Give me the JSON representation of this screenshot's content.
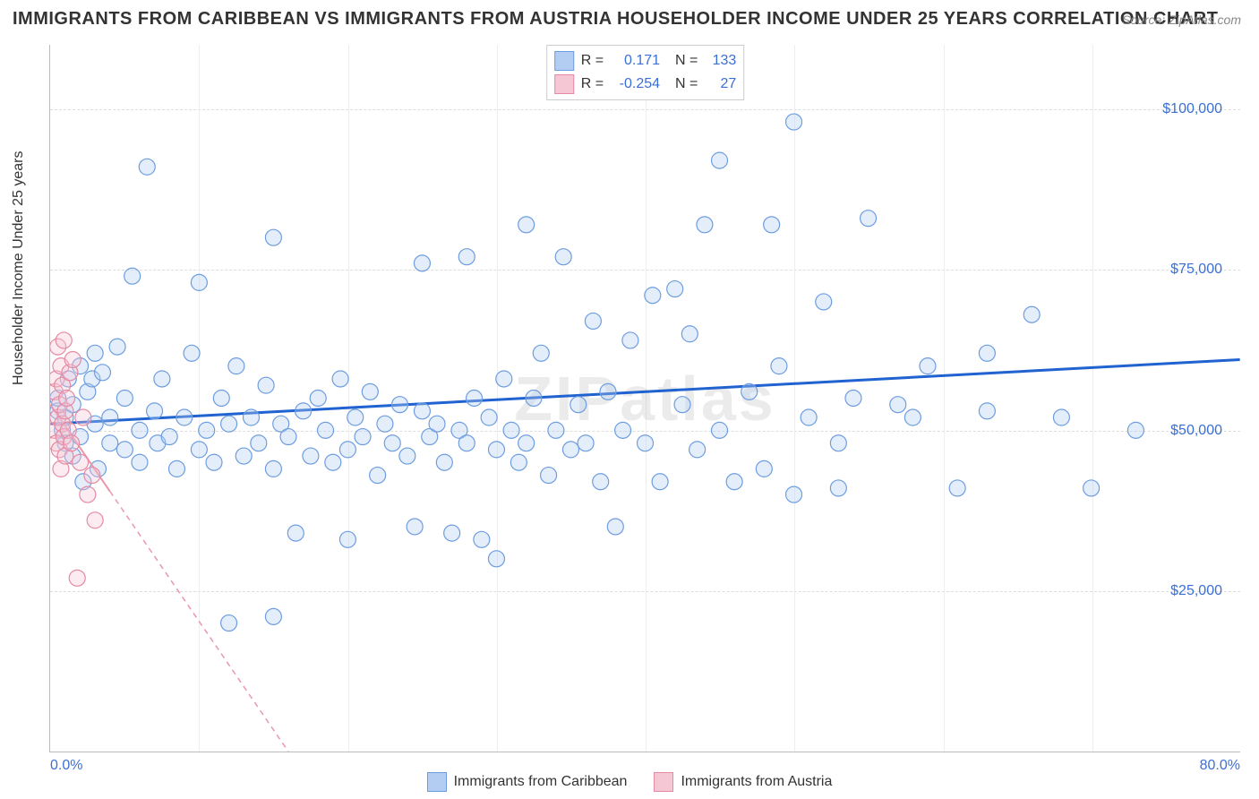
{
  "title": "IMMIGRANTS FROM CARIBBEAN VS IMMIGRANTS FROM AUSTRIA HOUSEHOLDER INCOME UNDER 25 YEARS CORRELATION CHART",
  "source": "Source: ZipAtlas.com",
  "watermark": "ZIPatlas",
  "ylabel": "Householder Income Under 25 years",
  "chart": {
    "type": "scatter",
    "xlim": [
      0,
      80
    ],
    "ylim": [
      0,
      110000
    ],
    "xticks_start": "0.0%",
    "xticks_end": "80.0%",
    "yticks": [
      {
        "v": 25000,
        "label": "$25,000"
      },
      {
        "v": 50000,
        "label": "$50,000"
      },
      {
        "v": 75000,
        "label": "$75,000"
      },
      {
        "v": 100000,
        "label": "$100,000"
      }
    ],
    "xgrid_step": 10,
    "background_color": "#ffffff",
    "grid_color_h": "#dddddd",
    "grid_color_v": "#eeeeee",
    "marker_radius": 9,
    "marker_fill_opacity": 0.35,
    "marker_stroke_width": 1.2,
    "series": [
      {
        "name": "Immigrants from Caribbean",
        "color_fill": "#b3cdf2",
        "color_stroke": "#6d9de0",
        "line_color": "#1f62d0",
        "line_width": 3,
        "line_dash": "none",
        "R": "0.171",
        "N": "133",
        "trend": {
          "x1": 0,
          "y1": 51000,
          "x2": 80,
          "y2": 61000
        },
        "points": [
          [
            0.5,
            53000
          ],
          [
            0.5,
            55000
          ],
          [
            0.8,
            50000
          ],
          [
            1,
            52000
          ],
          [
            1,
            48000
          ],
          [
            1.2,
            58000
          ],
          [
            1.5,
            46000
          ],
          [
            1.5,
            54000
          ],
          [
            2,
            60000
          ],
          [
            2,
            49000
          ],
          [
            2.2,
            42000
          ],
          [
            2.5,
            56000
          ],
          [
            2.8,
            58000
          ],
          [
            3,
            51000
          ],
          [
            3,
            62000
          ],
          [
            3.2,
            44000
          ],
          [
            3.5,
            59000
          ],
          [
            4,
            52000
          ],
          [
            4,
            48000
          ],
          [
            4.5,
            63000
          ],
          [
            5,
            47000
          ],
          [
            5,
            55000
          ],
          [
            5.5,
            74000
          ],
          [
            6,
            50000
          ],
          [
            6,
            45000
          ],
          [
            6.5,
            91000
          ],
          [
            7,
            53000
          ],
          [
            7.2,
            48000
          ],
          [
            7.5,
            58000
          ],
          [
            8,
            49000
          ],
          [
            8.5,
            44000
          ],
          [
            9,
            52000
          ],
          [
            9.5,
            62000
          ],
          [
            10,
            47000
          ],
          [
            10,
            73000
          ],
          [
            10.5,
            50000
          ],
          [
            11,
            45000
          ],
          [
            11.5,
            55000
          ],
          [
            12,
            51000
          ],
          [
            12,
            20000
          ],
          [
            12.5,
            60000
          ],
          [
            13,
            46000
          ],
          [
            13.5,
            52000
          ],
          [
            14,
            48000
          ],
          [
            14.5,
            57000
          ],
          [
            15,
            80000
          ],
          [
            15,
            44000
          ],
          [
            15,
            21000
          ],
          [
            15.5,
            51000
          ],
          [
            16,
            49000
          ],
          [
            16.5,
            34000
          ],
          [
            17,
            53000
          ],
          [
            17.5,
            46000
          ],
          [
            18,
            55000
          ],
          [
            18.5,
            50000
          ],
          [
            19,
            45000
          ],
          [
            19.5,
            58000
          ],
          [
            20,
            33000
          ],
          [
            20,
            47000
          ],
          [
            20.5,
            52000
          ],
          [
            21,
            49000
          ],
          [
            21.5,
            56000
          ],
          [
            22,
            43000
          ],
          [
            22.5,
            51000
          ],
          [
            23,
            48000
          ],
          [
            23.5,
            54000
          ],
          [
            24,
            46000
          ],
          [
            24.5,
            35000
          ],
          [
            25,
            53000
          ],
          [
            25,
            76000
          ],
          [
            25.5,
            49000
          ],
          [
            26,
            51000
          ],
          [
            26.5,
            45000
          ],
          [
            27,
            34000
          ],
          [
            27.5,
            50000
          ],
          [
            28,
            48000
          ],
          [
            28,
            77000
          ],
          [
            28.5,
            55000
          ],
          [
            29,
            33000
          ],
          [
            29.5,
            52000
          ],
          [
            30,
            47000
          ],
          [
            30,
            30000
          ],
          [
            30.5,
            58000
          ],
          [
            31,
            50000
          ],
          [
            31.5,
            45000
          ],
          [
            32,
            82000
          ],
          [
            32,
            48000
          ],
          [
            32.5,
            55000
          ],
          [
            33,
            62000
          ],
          [
            33.5,
            43000
          ],
          [
            34,
            50000
          ],
          [
            34.5,
            77000
          ],
          [
            35,
            47000
          ],
          [
            35.5,
            54000
          ],
          [
            36,
            48000
          ],
          [
            36.5,
            67000
          ],
          [
            37,
            42000
          ],
          [
            37.5,
            56000
          ],
          [
            38,
            35000
          ],
          [
            38.5,
            50000
          ],
          [
            39,
            64000
          ],
          [
            40,
            48000
          ],
          [
            40.5,
            71000
          ],
          [
            41,
            42000
          ],
          [
            42,
            72000
          ],
          [
            42.5,
            54000
          ],
          [
            43,
            65000
          ],
          [
            43.5,
            47000
          ],
          [
            44,
            82000
          ],
          [
            45,
            50000
          ],
          [
            45,
            92000
          ],
          [
            46,
            42000
          ],
          [
            47,
            56000
          ],
          [
            48,
            44000
          ],
          [
            48.5,
            82000
          ],
          [
            49,
            60000
          ],
          [
            50,
            40000
          ],
          [
            50,
            98000
          ],
          [
            51,
            52000
          ],
          [
            52,
            70000
          ],
          [
            53,
            48000
          ],
          [
            53,
            41000
          ],
          [
            54,
            55000
          ],
          [
            55,
            83000
          ],
          [
            57,
            54000
          ],
          [
            58,
            52000
          ],
          [
            59,
            60000
          ],
          [
            61,
            41000
          ],
          [
            63,
            53000
          ],
          [
            63,
            62000
          ],
          [
            66,
            68000
          ],
          [
            68,
            52000
          ],
          [
            70,
            41000
          ],
          [
            73,
            50000
          ]
        ]
      },
      {
        "name": "Immigrants from Austria",
        "color_fill": "#f5c6d3",
        "color_stroke": "#e58aa3",
        "line_color": "#e997ab",
        "line_width": 2,
        "line_dash": "6,5",
        "R": "-0.254",
        "N": "27",
        "trend": {
          "x1": 0,
          "y1": 54000,
          "x2": 16,
          "y2": 0
        },
        "trend_solid_until_x": 4,
        "points": [
          [
            0.3,
            50000
          ],
          [
            0.3,
            56000
          ],
          [
            0.4,
            48000
          ],
          [
            0.4,
            58000
          ],
          [
            0.5,
            52000
          ],
          [
            0.5,
            63000
          ],
          [
            0.6,
            47000
          ],
          [
            0.6,
            54000
          ],
          [
            0.7,
            60000
          ],
          [
            0.7,
            44000
          ],
          [
            0.8,
            51000
          ],
          [
            0.8,
            57000
          ],
          [
            0.9,
            49000
          ],
          [
            0.9,
            64000
          ],
          [
            1.0,
            53000
          ],
          [
            1.0,
            46000
          ],
          [
            1.1,
            55000
          ],
          [
            1.2,
            50000
          ],
          [
            1.3,
            59000
          ],
          [
            1.4,
            48000
          ],
          [
            1.5,
            61000
          ],
          [
            1.8,
            27000
          ],
          [
            2.0,
            45000
          ],
          [
            2.2,
            52000
          ],
          [
            2.5,
            40000
          ],
          [
            2.8,
            43000
          ],
          [
            3.0,
            36000
          ]
        ]
      }
    ]
  }
}
